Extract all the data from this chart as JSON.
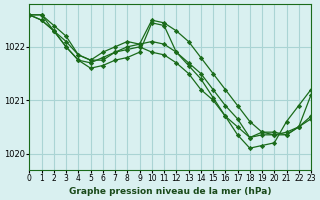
{
  "bg_color": "#d9f0f0",
  "grid_color": "#aad4d4",
  "line_color": "#1a6b1a",
  "marker_color": "#1a6b1a",
  "title": "Graphe pression niveau de la mer (hPa)",
  "title_fontsize": 8,
  "xlabel": "",
  "ylabel": "",
  "xlim": [
    0,
    23
  ],
  "ylim": [
    1019.7,
    1022.8
  ],
  "yticks": [
    1020,
    1021,
    1022
  ],
  "xtick_labels": [
    "0",
    "1",
    "2",
    "3",
    "4",
    "5",
    "6",
    "7",
    "8",
    "9",
    "10",
    "11",
    "12",
    "13",
    "14",
    "15",
    "16",
    "17",
    "18",
    "19",
    "20",
    "21",
    "22",
    "23"
  ],
  "series": [
    {
      "x": [
        0,
        1,
        2,
        3,
        4,
        5,
        6,
        7,
        8,
        9,
        10,
        11,
        12,
        13,
        14,
        15,
        16,
        17,
        18,
        19,
        20,
        21,
        22,
        23
      ],
      "y": [
        1022.6,
        1022.6,
        1022.4,
        1022.2,
        1021.85,
        1021.75,
        1021.9,
        1022.0,
        1022.1,
        1022.05,
        1022.5,
        1022.45,
        1022.3,
        1022.1,
        1021.8,
        1021.5,
        1021.2,
        1020.9,
        1020.6,
        1020.4,
        1020.35,
        1020.35,
        1020.5,
        1020.7
      ]
    },
    {
      "x": [
        0,
        1,
        2,
        3,
        4,
        5,
        6,
        7,
        8,
        9,
        10,
        11,
        12,
        13,
        14,
        15,
        16,
        17,
        18,
        19,
        20,
        21,
        22,
        23
      ],
      "y": [
        1022.6,
        1022.6,
        1022.3,
        1022.0,
        1021.75,
        1021.6,
        1021.65,
        1021.75,
        1021.8,
        1021.9,
        1022.45,
        1022.4,
        1021.9,
        1021.65,
        1021.4,
        1021.05,
        1020.7,
        1020.35,
        1020.1,
        1020.15,
        1020.2,
        1020.6,
        1020.9,
        1021.2
      ]
    },
    {
      "x": [
        0,
        1,
        2,
        3,
        4,
        5,
        6,
        7,
        8,
        9,
        10,
        11,
        12,
        13,
        14,
        15,
        16,
        17,
        18,
        19,
        20,
        21,
        22,
        23
      ],
      "y": [
        1022.6,
        1022.5,
        1022.3,
        1022.0,
        1021.75,
        1021.7,
        1021.8,
        1021.9,
        1021.95,
        1022.0,
        1021.9,
        1021.85,
        1021.7,
        1021.5,
        1021.2,
        1021.0,
        1020.7,
        1020.5,
        1020.3,
        1020.35,
        1020.35,
        1020.4,
        1020.5,
        1020.65
      ]
    },
    {
      "x": [
        0,
        1,
        2,
        3,
        4,
        5,
        6,
        7,
        8,
        9,
        10,
        11,
        12,
        13,
        14,
        15,
        16,
        17,
        18,
        19,
        20,
        21,
        22,
        23
      ],
      "y": [
        1022.6,
        1022.5,
        1022.3,
        1022.1,
        1021.85,
        1021.75,
        1021.75,
        1021.9,
        1022.0,
        1022.05,
        1022.1,
        1022.05,
        1021.9,
        1021.7,
        1021.5,
        1021.2,
        1020.9,
        1020.65,
        1020.3,
        1020.4,
        1020.4,
        1020.35,
        1020.5,
        1021.1
      ]
    }
  ]
}
